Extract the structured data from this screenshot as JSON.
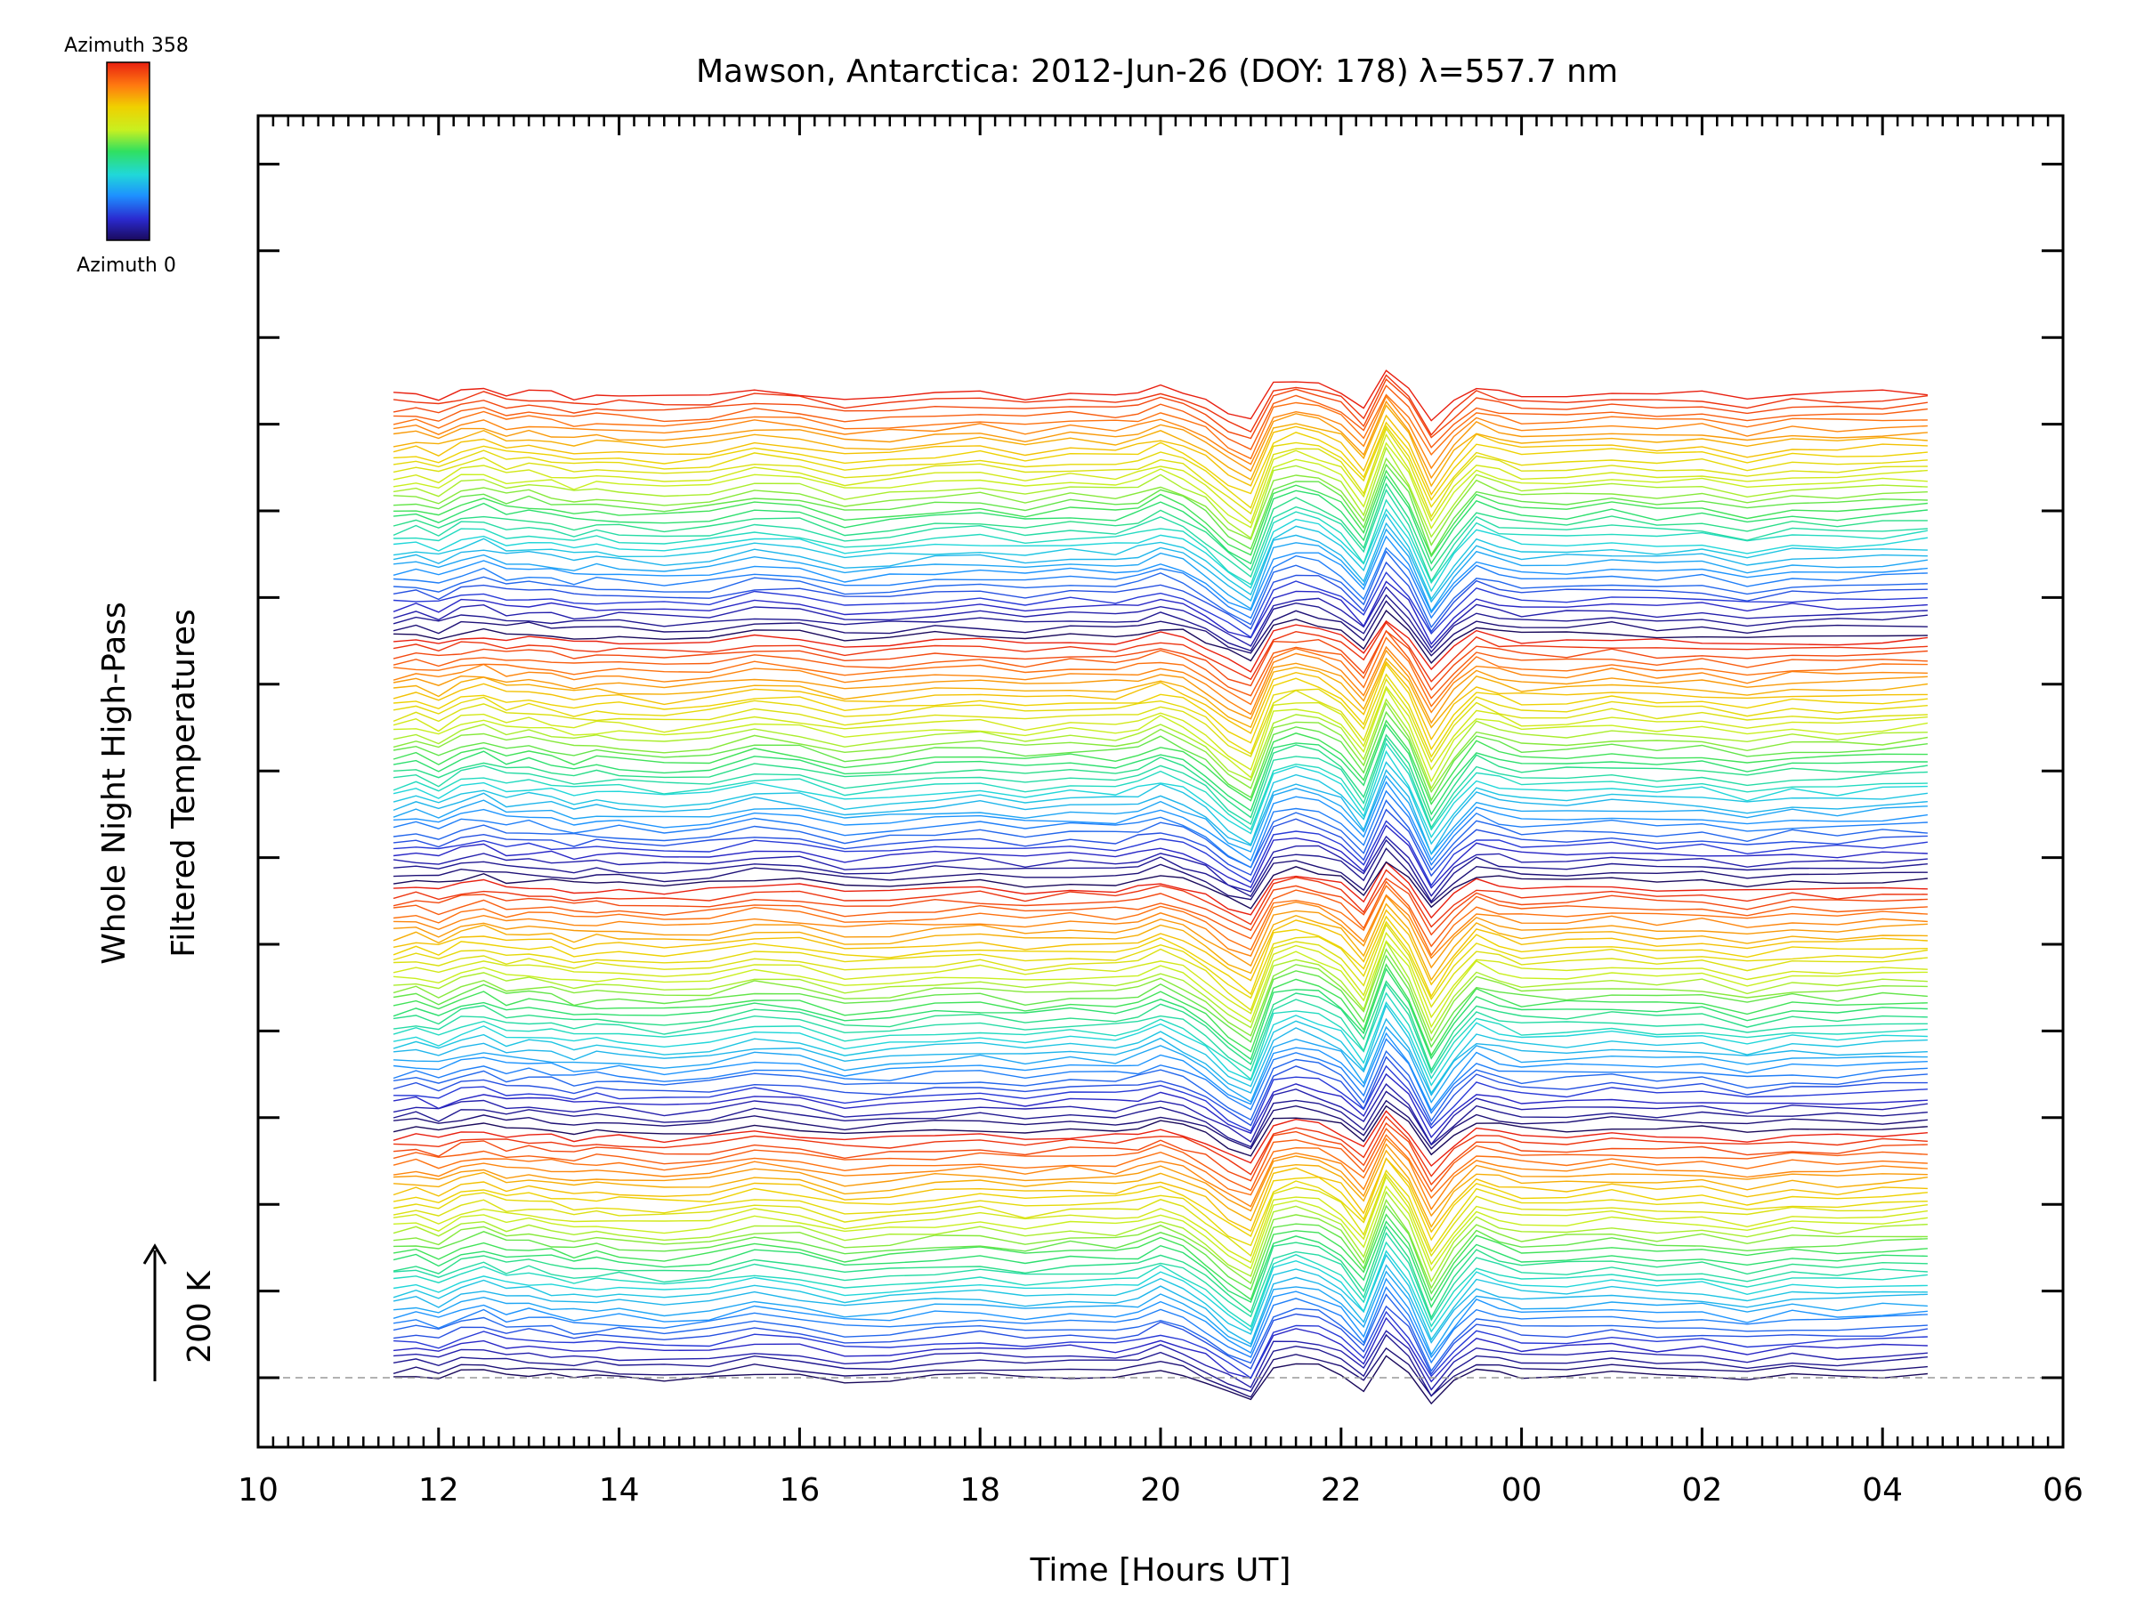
{
  "chart_data": {
    "type": "line",
    "title": "Mawson, Antarctica: 2012-Jun-26 (DOY: 178) λ=557.7 nm",
    "xlabel": "Time [Hours UT]",
    "ylabel_line1": "Whole Night High-Pass",
    "ylabel_line2": "Filtered Temperatures",
    "scale_label": "200 K",
    "colorbar": {
      "top_label": "Azimuth 358",
      "bottom_label": "Azimuth 0",
      "colormap": [
        "#1a0a5c",
        "#2a2ad0",
        "#1e90ff",
        "#20d8d8",
        "#30e060",
        "#c8f020",
        "#f0d000",
        "#ff7a10",
        "#e82010"
      ]
    },
    "x_ticks": [
      "10",
      "12",
      "14",
      "16",
      "18",
      "20",
      "22",
      "00",
      "02",
      "04",
      "06"
    ],
    "xlim_hours": [
      10,
      30
    ],
    "x_hours": [
      11.5,
      11.75,
      12.0,
      12.25,
      12.5,
      12.75,
      13.0,
      13.25,
      13.5,
      13.75,
      14.0,
      14.5,
      15.0,
      15.5,
      16.0,
      16.5,
      17.0,
      17.5,
      18.0,
      18.5,
      19.0,
      19.5,
      19.75,
      20.0,
      20.25,
      20.5,
      20.75,
      21.0,
      21.25,
      21.5,
      21.75,
      22.0,
      22.25,
      22.5,
      22.75,
      23.0,
      23.25,
      23.5,
      23.75,
      24.0,
      24.5,
      25.0,
      25.5,
      26.0,
      26.5,
      27.0,
      27.5,
      28.0,
      28.5
    ],
    "series_count": 144,
    "pattern": [
      0,
      4,
      -3,
      8,
      12,
      4,
      6,
      3,
      -2,
      1,
      0,
      -4,
      -1,
      9,
      5,
      -6,
      -3,
      2,
      4,
      -2,
      3,
      1,
      5,
      14,
      6,
      -8,
      -28,
      -42,
      18,
      25,
      20,
      8,
      -20,
      40,
      10,
      -45,
      -10,
      15,
      8,
      2,
      3,
      7,
      2,
      4,
      -4,
      3,
      1,
      4,
      6
    ],
    "spacing_K": 10.5
  }
}
